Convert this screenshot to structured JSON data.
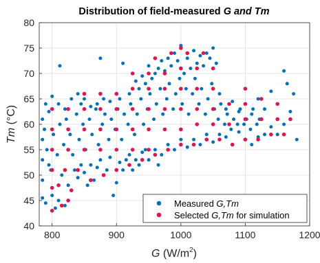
{
  "chart_data": {
    "type": "scatter",
    "title": {
      "prefix": "Distribution of field-measured ",
      "italic": "G and Tm"
    },
    "xlabel": {
      "var": "G",
      "unit": " (W/m",
      "sup": "2",
      "close": ")"
    },
    "ylabel": {
      "var": "Tm",
      "unit": " (°C)"
    },
    "xlim": [
      780,
      1200
    ],
    "ylim": [
      40,
      80
    ],
    "x_ticks": [
      "800",
      "900",
      "1000",
      "1100",
      "1200"
    ],
    "y_ticks": [
      "40",
      "45",
      "50",
      "55",
      "60",
      "65",
      "70",
      "75",
      "80"
    ],
    "grid": true,
    "legend": {
      "placement": "bottom-right",
      "entries": [
        {
          "prefix": "Measured ",
          "italic": "G,Tm",
          "suffix": ""
        },
        {
          "prefix": "Selected ",
          "italic": "G,Tm",
          "suffix": " for simulation"
        }
      ]
    },
    "colors": {
      "measured": "#0072BD",
      "selected": "#E8114F"
    },
    "series": [
      {
        "name": "Measured G,Tm",
        "points": [
          [
            785,
            45.5
          ],
          [
            790,
            44.5
          ],
          [
            795,
            52
          ],
          [
            800,
            46
          ],
          [
            805,
            43.5
          ],
          [
            810,
            45
          ],
          [
            815,
            50
          ],
          [
            820,
            44
          ],
          [
            825,
            48
          ],
          [
            830,
            47
          ],
          [
            835,
            51
          ],
          [
            840,
            49.5
          ],
          [
            845,
            52
          ],
          [
            850,
            50.5
          ],
          [
            855,
            48
          ],
          [
            860,
            52
          ],
          [
            865,
            49
          ],
          [
            870,
            51.5
          ],
          [
            875,
            53
          ],
          [
            880,
            50
          ],
          [
            885,
            51
          ],
          [
            890,
            53.5
          ],
          [
            895,
            46
          ],
          [
            900,
            48.5
          ],
          [
            905,
            52.5
          ],
          [
            910,
            51
          ],
          [
            915,
            53
          ],
          [
            920,
            54
          ],
          [
            925,
            51
          ],
          [
            930,
            53
          ],
          [
            935,
            52
          ],
          [
            940,
            54.5
          ],
          [
            945,
            55
          ],
          [
            950,
            53
          ],
          [
            960,
            55
          ],
          [
            965,
            52
          ],
          [
            970,
            54
          ],
          [
            980,
            56
          ],
          [
            990,
            55
          ],
          [
            1000,
            57
          ],
          [
            1010,
            55.5
          ],
          [
            1020,
            57
          ],
          [
            1030,
            56
          ],
          [
            1040,
            58
          ],
          [
            1050,
            56.5
          ],
          [
            1060,
            58
          ],
          [
            1070,
            57.5
          ],
          [
            1080,
            56
          ],
          [
            1090,
            58.5
          ],
          [
            1100,
            57
          ],
          [
            1110,
            56
          ],
          [
            1120,
            57.5
          ],
          [
            1130,
            58
          ],
          [
            1140,
            59.5
          ],
          [
            1150,
            58
          ],
          [
            1160,
            60
          ],
          [
            1170,
            62.5
          ],
          [
            1180,
            57
          ],
          [
            1175,
            66
          ],
          [
            1165,
            68
          ],
          [
            1160,
            70.5
          ],
          [
            1150,
            64
          ],
          [
            1140,
            66.5
          ],
          [
            1130,
            63
          ],
          [
            1120,
            65
          ],
          [
            1110,
            62
          ],
          [
            1100,
            64
          ],
          [
            1090,
            62.5
          ],
          [
            1080,
            64.5
          ],
          [
            1070,
            63
          ],
          [
            1060,
            66
          ],
          [
            1055,
            72
          ],
          [
            1050,
            75
          ],
          [
            1045,
            73
          ],
          [
            1040,
            74
          ],
          [
            1035,
            71.5
          ],
          [
            1030,
            73.5
          ],
          [
            1025,
            72
          ],
          [
            1020,
            74.5
          ],
          [
            1015,
            71
          ],
          [
            1010,
            73
          ],
          [
            1005,
            70
          ],
          [
            1000,
            75.5
          ],
          [
            995,
            72.5
          ],
          [
            990,
            74
          ],
          [
            985,
            71.5
          ],
          [
            980,
            73
          ],
          [
            975,
            70.5
          ],
          [
            970,
            72.5
          ],
          [
            965,
            71
          ],
          [
            960,
            70
          ],
          [
            955,
            69
          ],
          [
            950,
            71.5
          ],
          [
            945,
            68
          ],
          [
            940,
            69.5
          ],
          [
            935,
            67
          ],
          [
            930,
            68.5
          ],
          [
            925,
            67
          ],
          [
            920,
            66
          ],
          [
            910,
            72
          ],
          [
            905,
            65
          ],
          [
            900,
            66
          ],
          [
            890,
            64.5
          ],
          [
            880,
            65
          ],
          [
            875,
            73
          ],
          [
            870,
            64
          ],
          [
            860,
            63.5
          ],
          [
            850,
            65
          ],
          [
            845,
            64
          ],
          [
            840,
            66
          ],
          [
            830,
            65
          ],
          [
            820,
            63
          ],
          [
            812,
            71.5
          ],
          [
            810,
            64
          ],
          [
            800,
            65.5
          ],
          [
            795,
            62.5
          ],
          [
            790,
            64
          ],
          [
            785,
            61
          ],
          [
            785,
            57
          ],
          [
            785,
            53
          ],
          [
            785,
            49
          ],
          [
            788,
            59
          ],
          [
            792,
            55
          ],
          [
            798,
            51
          ],
          [
            802,
            58
          ],
          [
            808,
            54
          ],
          [
            812,
            60
          ],
          [
            818,
            56
          ],
          [
            822,
            61
          ],
          [
            828,
            58
          ],
          [
            832,
            54
          ],
          [
            838,
            62
          ],
          [
            842,
            57
          ],
          [
            848,
            60
          ],
          [
            852,
            55
          ],
          [
            858,
            61
          ],
          [
            862,
            58
          ],
          [
            868,
            63
          ],
          [
            872,
            56
          ],
          [
            878,
            60
          ],
          [
            882,
            62
          ],
          [
            888,
            57
          ],
          [
            892,
            61
          ],
          [
            898,
            59
          ],
          [
            902,
            63
          ],
          [
            908,
            57
          ],
          [
            912,
            62
          ],
          [
            918,
            60
          ],
          [
            922,
            64
          ],
          [
            928,
            58
          ],
          [
            932,
            62
          ],
          [
            938,
            65
          ],
          [
            942,
            60
          ],
          [
            948,
            63
          ],
          [
            952,
            66
          ],
          [
            958,
            61
          ],
          [
            962,
            64
          ],
          [
            968,
            67
          ],
          [
            972,
            62
          ],
          [
            978,
            65
          ],
          [
            982,
            68
          ],
          [
            988,
            63
          ],
          [
            992,
            66
          ],
          [
            998,
            69
          ],
          [
            1002,
            64
          ],
          [
            1008,
            67
          ],
          [
            1012,
            62
          ],
          [
            1018,
            66
          ],
          [
            1022,
            69
          ],
          [
            1028,
            64
          ],
          [
            1032,
            67
          ],
          [
            1038,
            62
          ],
          [
            1042,
            65
          ],
          [
            1048,
            68
          ],
          [
            1052,
            63
          ],
          [
            1058,
            61
          ],
          [
            1062,
            64
          ],
          [
            1068,
            60
          ],
          [
            1072,
            62
          ],
          [
            1078,
            59
          ],
          [
            1082,
            61
          ],
          [
            1088,
            60
          ],
          [
            1092,
            63
          ],
          [
            1098,
            60
          ],
          [
            1102,
            61
          ],
          [
            1108,
            59
          ],
          [
            1112,
            63
          ],
          [
            1118,
            60
          ],
          [
            1122,
            61
          ]
        ]
      },
      {
        "name": "Selected G,Tm for simulation",
        "points": [
          [
            800,
            43
          ],
          [
            815,
            44
          ],
          [
            825,
            45
          ],
          [
            800,
            47.5
          ],
          [
            810,
            48
          ],
          [
            830,
            47
          ],
          [
            800,
            51
          ],
          [
            820,
            51
          ],
          [
            840,
            51
          ],
          [
            860,
            49
          ],
          [
            880,
            50
          ],
          [
            900,
            51
          ],
          [
            920,
            52
          ],
          [
            940,
            53
          ],
          [
            960,
            54
          ],
          [
            980,
            55
          ],
          [
            1000,
            56
          ],
          [
            1020,
            56
          ],
          [
            1040,
            57
          ],
          [
            1060,
            57
          ],
          [
            1080,
            56
          ],
          [
            1100,
            57
          ],
          [
            1120,
            57
          ],
          [
            1140,
            58
          ],
          [
            1160,
            58
          ],
          [
            800,
            55
          ],
          [
            825,
            55
          ],
          [
            850,
            55
          ],
          [
            875,
            55
          ],
          [
            900,
            55
          ],
          [
            925,
            55
          ],
          [
            950,
            55
          ],
          [
            800,
            59
          ],
          [
            825,
            59
          ],
          [
            850,
            59
          ],
          [
            875,
            59
          ],
          [
            900,
            59
          ],
          [
            925,
            59
          ],
          [
            950,
            59
          ],
          [
            975,
            59
          ],
          [
            1000,
            59
          ],
          [
            1025,
            60
          ],
          [
            1050,
            60
          ],
          [
            1075,
            60
          ],
          [
            1100,
            61
          ],
          [
            1125,
            61
          ],
          [
            1150,
            61
          ],
          [
            800,
            63
          ],
          [
            825,
            63
          ],
          [
            850,
            63
          ],
          [
            875,
            63
          ],
          [
            900,
            63
          ],
          [
            925,
            63
          ],
          [
            950,
            63
          ],
          [
            975,
            63
          ],
          [
            1000,
            63
          ],
          [
            1025,
            63
          ],
          [
            1050,
            63
          ],
          [
            1075,
            64
          ],
          [
            1100,
            64
          ],
          [
            1125,
            65
          ],
          [
            1150,
            64
          ],
          [
            1170,
            61
          ],
          [
            850,
            66
          ],
          [
            875,
            66
          ],
          [
            900,
            66
          ],
          [
            925,
            67
          ],
          [
            950,
            67
          ],
          [
            975,
            67
          ],
          [
            1000,
            67
          ],
          [
            1025,
            67
          ],
          [
            1050,
            67
          ],
          [
            1100,
            67
          ],
          [
            925,
            70
          ],
          [
            950,
            70
          ],
          [
            975,
            70
          ],
          [
            1000,
            71
          ],
          [
            1025,
            71
          ],
          [
            1050,
            71
          ],
          [
            960,
            73
          ],
          [
            985,
            74
          ],
          [
            1010,
            74
          ],
          [
            1035,
            74
          ],
          [
            1000,
            75
          ]
        ]
      }
    ]
  }
}
